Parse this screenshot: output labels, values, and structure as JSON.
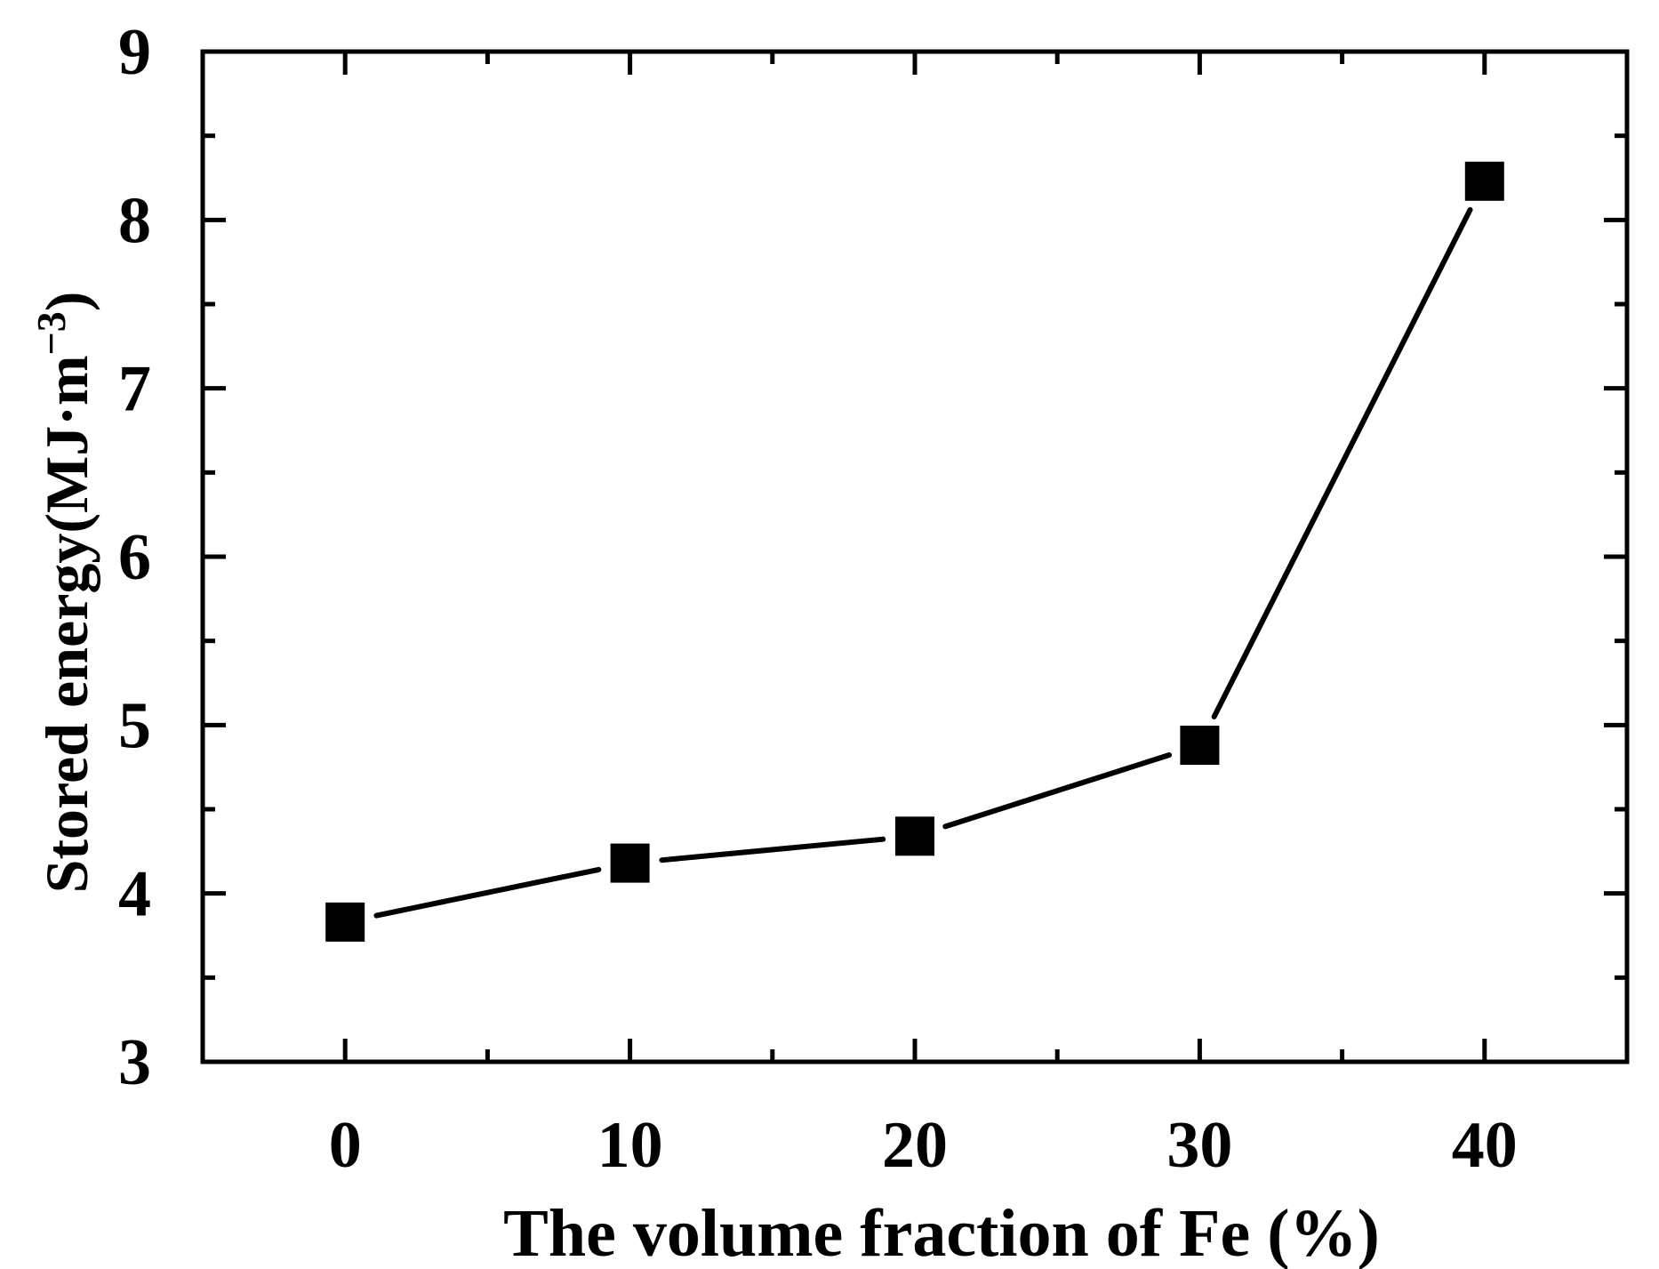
{
  "chart_data": {
    "type": "line",
    "title": "",
    "xlabel": "The volume fraction of Fe (%)",
    "ylabel": {
      "base": "Stored energy(MJ·m",
      "superscript": "−3",
      "close": ")"
    },
    "xlim": [
      -5,
      45
    ],
    "ylim": [
      3,
      9
    ],
    "x_ticks": [
      0,
      10,
      20,
      30,
      40
    ],
    "x_tick_labels": [
      "0",
      "10",
      "20",
      "30",
      "40"
    ],
    "x_minor_step": 5,
    "y_ticks": [
      3,
      4,
      5,
      6,
      7,
      8,
      9
    ],
    "y_tick_labels": [
      "3",
      "4",
      "5",
      "6",
      "7",
      "8",
      "9"
    ],
    "y_minor_step": 0.5,
    "grid": false,
    "legend": "none",
    "marker": "filled-square",
    "line_color": "#000000",
    "series": [
      {
        "x": [
          0,
          10,
          20,
          30,
          40
        ],
        "y": [
          3.83,
          4.18,
          4.34,
          4.88,
          8.23
        ]
      }
    ]
  }
}
